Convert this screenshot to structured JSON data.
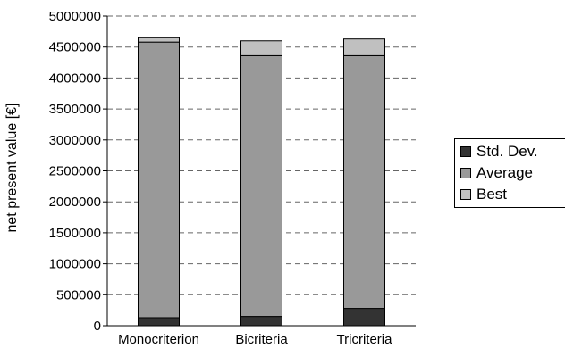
{
  "chart_data": {
    "type": "bar",
    "stacked": true,
    "title": "",
    "xlabel": "",
    "ylabel": "net present value [€]",
    "ylim": [
      0,
      5000000
    ],
    "yticks": [
      "0",
      "500000",
      "1000000",
      "1500000",
      "2000000",
      "2500000",
      "3000000",
      "3500000",
      "4000000",
      "4500000",
      "5000000"
    ],
    "categories": [
      "Monocriterion",
      "Bicriteria",
      "Tricriteria"
    ],
    "series": [
      {
        "name": "Std. Dev.",
        "color": "#333333",
        "values": [
          130000,
          150000,
          280000
        ]
      },
      {
        "name": "Average",
        "color": "#999999",
        "values": [
          4450000,
          4210000,
          4080000
        ]
      },
      {
        "name": "Best",
        "color": "#c0c0c0",
        "values": [
          70000,
          240000,
          270000
        ]
      }
    ],
    "grid": "horizontal dashed",
    "legend_position": "right"
  }
}
